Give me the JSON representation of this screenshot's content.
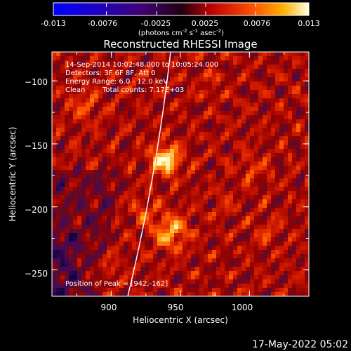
{
  "colorbar": {
    "tick_labels": [
      "-0.013",
      "-0.0076",
      "-0.0025",
      "0.0025",
      "0.0076",
      "0.013"
    ],
    "ticks": [
      -0.013,
      -0.0076,
      -0.0025,
      0.0025,
      0.0076,
      0.013
    ],
    "range": [
      -0.013,
      0.013
    ],
    "units_prefix": "(photons cm",
    "units_exp1": "-2",
    "units_mid": " s",
    "units_exp2": "-1",
    "units_suffix": " asec",
    "units_exp3": "-2",
    "units_close": ")"
  },
  "image": {
    "title": "Reconstructed RHESSI Image",
    "info": {
      "time": "14-Sep-2014 10:02:48.000 to 10:05:24.000",
      "detectors": "Detectors: 3F 6F 8F, Att 0",
      "energy": "Energy Range: 6.0 - 12.0 keV",
      "clean": "Clean",
      "counts": "Total counts: 7.17E+03"
    },
    "peak_label": "Position of Peak = [942,-162]",
    "peak": [
      942,
      -162
    ],
    "xlabel": "Heliocentric X (arcsec)",
    "ylabel": "Heliocentric Y (arcsec)",
    "xticks": [
      900,
      950,
      1000
    ],
    "yticks": [
      -100,
      -150,
      -200,
      -250
    ],
    "xtick_labels": [
      "900",
      "950",
      "1000"
    ],
    "ytick_labels": [
      "−100",
      "−150",
      "−200",
      "−250"
    ],
    "xlim": [
      857,
      1043
    ],
    "ylim": [
      -271,
      -77
    ]
  },
  "footer": {
    "timestamp": "17-May-2022 05:02"
  },
  "colors": {
    "background": "#000000",
    "text": "#ffffff",
    "limb": "#ffffff"
  }
}
